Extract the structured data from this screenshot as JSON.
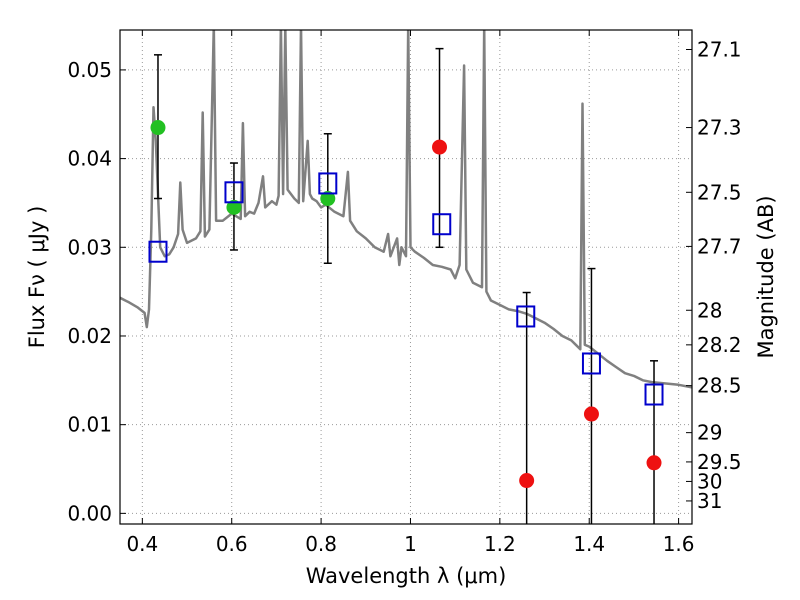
{
  "chart_data": {
    "type": "scatter",
    "xlabel": "Wavelength  λ (μm)",
    "ylabel": "Flux  Fν  ( μJy )",
    "ylabel_right": "Magnitude (AB)",
    "xlim": [
      0.35,
      1.63
    ],
    "ylim": [
      -0.0012,
      0.0545
    ],
    "grid": true,
    "x_ticks": [
      0.4,
      0.6,
      0.8,
      1.0,
      1.2,
      1.4,
      1.6
    ],
    "x_tick_labels": [
      "0.4",
      "0.6",
      "0.8",
      "1",
      "1.2",
      "1.4",
      "1.6"
    ],
    "y_ticks": [
      0.0,
      0.01,
      0.02,
      0.03,
      0.04,
      0.05
    ],
    "y_tick_labels": [
      "0.00",
      "0.01",
      "0.02",
      "0.03",
      "0.04",
      "0.05"
    ],
    "right_ticks": [
      {
        "label": "27.1",
        "flux": 0.0523
      },
      {
        "label": "27.3",
        "flux": 0.0435
      },
      {
        "label": "27.5",
        "flux": 0.0362
      },
      {
        "label": "27.7",
        "flux": 0.0301
      },
      {
        "label": "28",
        "flux": 0.0229
      },
      {
        "label": "28.2",
        "flux": 0.019
      },
      {
        "label": "28.5",
        "flux": 0.0144
      },
      {
        "label": "29",
        "flux": 0.0091
      },
      {
        "label": "29.5",
        "flux": 0.0058
      },
      {
        "label": "30",
        "flux": 0.0036
      },
      {
        "label": "31",
        "flux": 0.0014
      }
    ],
    "colors": {
      "spectrum": "#808080",
      "green": "#22c022",
      "red": "#ee1111",
      "model_box": "#0000cc",
      "errorbar": "#000000",
      "grid": "#9a9a9a"
    },
    "series": [
      {
        "marker": "filled-circle-green",
        "points": [
          {
            "x": 0.435,
            "y": 0.0435,
            "err_lo": 0.0355,
            "err_hi": 0.0517
          },
          {
            "x": 0.605,
            "y": 0.0345,
            "err_lo": 0.0297,
            "err_hi": 0.0395
          },
          {
            "x": 0.815,
            "y": 0.0355,
            "err_lo": 0.0282,
            "err_hi": 0.0428
          }
        ]
      },
      {
        "marker": "filled-circle-red",
        "points": [
          {
            "x": 1.065,
            "y": 0.0413,
            "err_lo": 0.03,
            "err_hi": 0.0524
          },
          {
            "x": 1.26,
            "y": 0.0037,
            "err_lo": -0.0012,
            "err_hi": 0.0249
          },
          {
            "x": 1.405,
            "y": 0.0112,
            "err_lo": -0.0012,
            "err_hi": 0.0276
          },
          {
            "x": 1.545,
            "y": 0.0057,
            "err_lo": -0.0012,
            "err_hi": 0.0172
          }
        ]
      },
      {
        "marker": "open-square-blue",
        "points": [
          {
            "x": 0.435,
            "y": 0.0295
          },
          {
            "x": 0.605,
            "y": 0.0362
          },
          {
            "x": 0.815,
            "y": 0.0372
          },
          {
            "x": 1.07,
            "y": 0.0326
          },
          {
            "x": 1.258,
            "y": 0.0222
          },
          {
            "x": 1.405,
            "y": 0.0169
          },
          {
            "x": 1.545,
            "y": 0.0134
          }
        ]
      },
      {
        "marker": "line-gray",
        "line": [
          [
            0.35,
            0.0243
          ],
          [
            0.37,
            0.0238
          ],
          [
            0.39,
            0.0232
          ],
          [
            0.405,
            0.0226
          ],
          [
            0.41,
            0.021
          ],
          [
            0.415,
            0.023
          ],
          [
            0.42,
            0.032
          ],
          [
            0.425,
            0.0458
          ],
          [
            0.43,
            0.042
          ],
          [
            0.44,
            0.03
          ],
          [
            0.45,
            0.029
          ],
          [
            0.46,
            0.0292
          ],
          [
            0.47,
            0.03
          ],
          [
            0.48,
            0.0315
          ],
          [
            0.485,
            0.0373
          ],
          [
            0.49,
            0.032
          ],
          [
            0.5,
            0.0305
          ],
          [
            0.52,
            0.031
          ],
          [
            0.53,
            0.0318
          ],
          [
            0.535,
            0.0452
          ],
          [
            0.54,
            0.0312
          ],
          [
            0.55,
            0.032
          ],
          [
            0.56,
            0.055
          ],
          [
            0.565,
            0.033
          ],
          [
            0.58,
            0.033
          ],
          [
            0.6,
            0.0338
          ],
          [
            0.62,
            0.0332
          ],
          [
            0.625,
            0.044
          ],
          [
            0.63,
            0.0335
          ],
          [
            0.64,
            0.034
          ],
          [
            0.65,
            0.0338
          ],
          [
            0.66,
            0.035
          ],
          [
            0.67,
            0.038
          ],
          [
            0.675,
            0.0345
          ],
          [
            0.69,
            0.0352
          ],
          [
            0.7,
            0.0348
          ],
          [
            0.705,
            0.0358
          ],
          [
            0.71,
            0.055
          ],
          [
            0.715,
            0.036
          ],
          [
            0.72,
            0.055
          ],
          [
            0.725,
            0.0365
          ],
          [
            0.74,
            0.0355
          ],
          [
            0.75,
            0.035
          ],
          [
            0.755,
            0.055
          ],
          [
            0.76,
            0.0352
          ],
          [
            0.77,
            0.042
          ],
          [
            0.775,
            0.036
          ],
          [
            0.78,
            0.0355
          ],
          [
            0.79,
            0.0352
          ],
          [
            0.8,
            0.0345
          ],
          [
            0.81,
            0.0348
          ],
          [
            0.83,
            0.034
          ],
          [
            0.85,
            0.0335
          ],
          [
            0.86,
            0.0385
          ],
          [
            0.865,
            0.033
          ],
          [
            0.88,
            0.0318
          ],
          [
            0.9,
            0.031
          ],
          [
            0.92,
            0.03
          ],
          [
            0.94,
            0.0295
          ],
          [
            0.95,
            0.0315
          ],
          [
            0.955,
            0.029
          ],
          [
            0.97,
            0.031
          ],
          [
            0.975,
            0.028
          ],
          [
            0.98,
            0.03
          ],
          [
            0.99,
            0.029
          ],
          [
            0.995,
            0.055
          ],
          [
            1.0,
            0.03
          ],
          [
            1.01,
            0.0295
          ],
          [
            1.03,
            0.0288
          ],
          [
            1.05,
            0.028
          ],
          [
            1.07,
            0.0278
          ],
          [
            1.09,
            0.0275
          ],
          [
            1.1,
            0.0265
          ],
          [
            1.11,
            0.028
          ],
          [
            1.12,
            0.0505
          ],
          [
            1.125,
            0.0275
          ],
          [
            1.14,
            0.026
          ],
          [
            1.16,
            0.0255
          ],
          [
            1.165,
            0.055
          ],
          [
            1.17,
            0.025
          ],
          [
            1.18,
            0.024
          ],
          [
            1.2,
            0.0235
          ],
          [
            1.22,
            0.023
          ],
          [
            1.24,
            0.0228
          ],
          [
            1.26,
            0.0225
          ],
          [
            1.28,
            0.022
          ],
          [
            1.3,
            0.0215
          ],
          [
            1.32,
            0.0208
          ],
          [
            1.34,
            0.02
          ],
          [
            1.36,
            0.0195
          ],
          [
            1.37,
            0.019
          ],
          [
            1.38,
            0.0185
          ],
          [
            1.385,
            0.0462
          ],
          [
            1.39,
            0.019
          ],
          [
            1.4,
            0.0188
          ],
          [
            1.42,
            0.018
          ],
          [
            1.44,
            0.0172
          ],
          [
            1.46,
            0.0165
          ],
          [
            1.48,
            0.0158
          ],
          [
            1.5,
            0.0155
          ],
          [
            1.52,
            0.015
          ],
          [
            1.54,
            0.0148
          ],
          [
            1.56,
            0.0147
          ],
          [
            1.58,
            0.0146
          ],
          [
            1.6,
            0.0145
          ],
          [
            1.63,
            0.0142
          ]
        ]
      }
    ]
  }
}
